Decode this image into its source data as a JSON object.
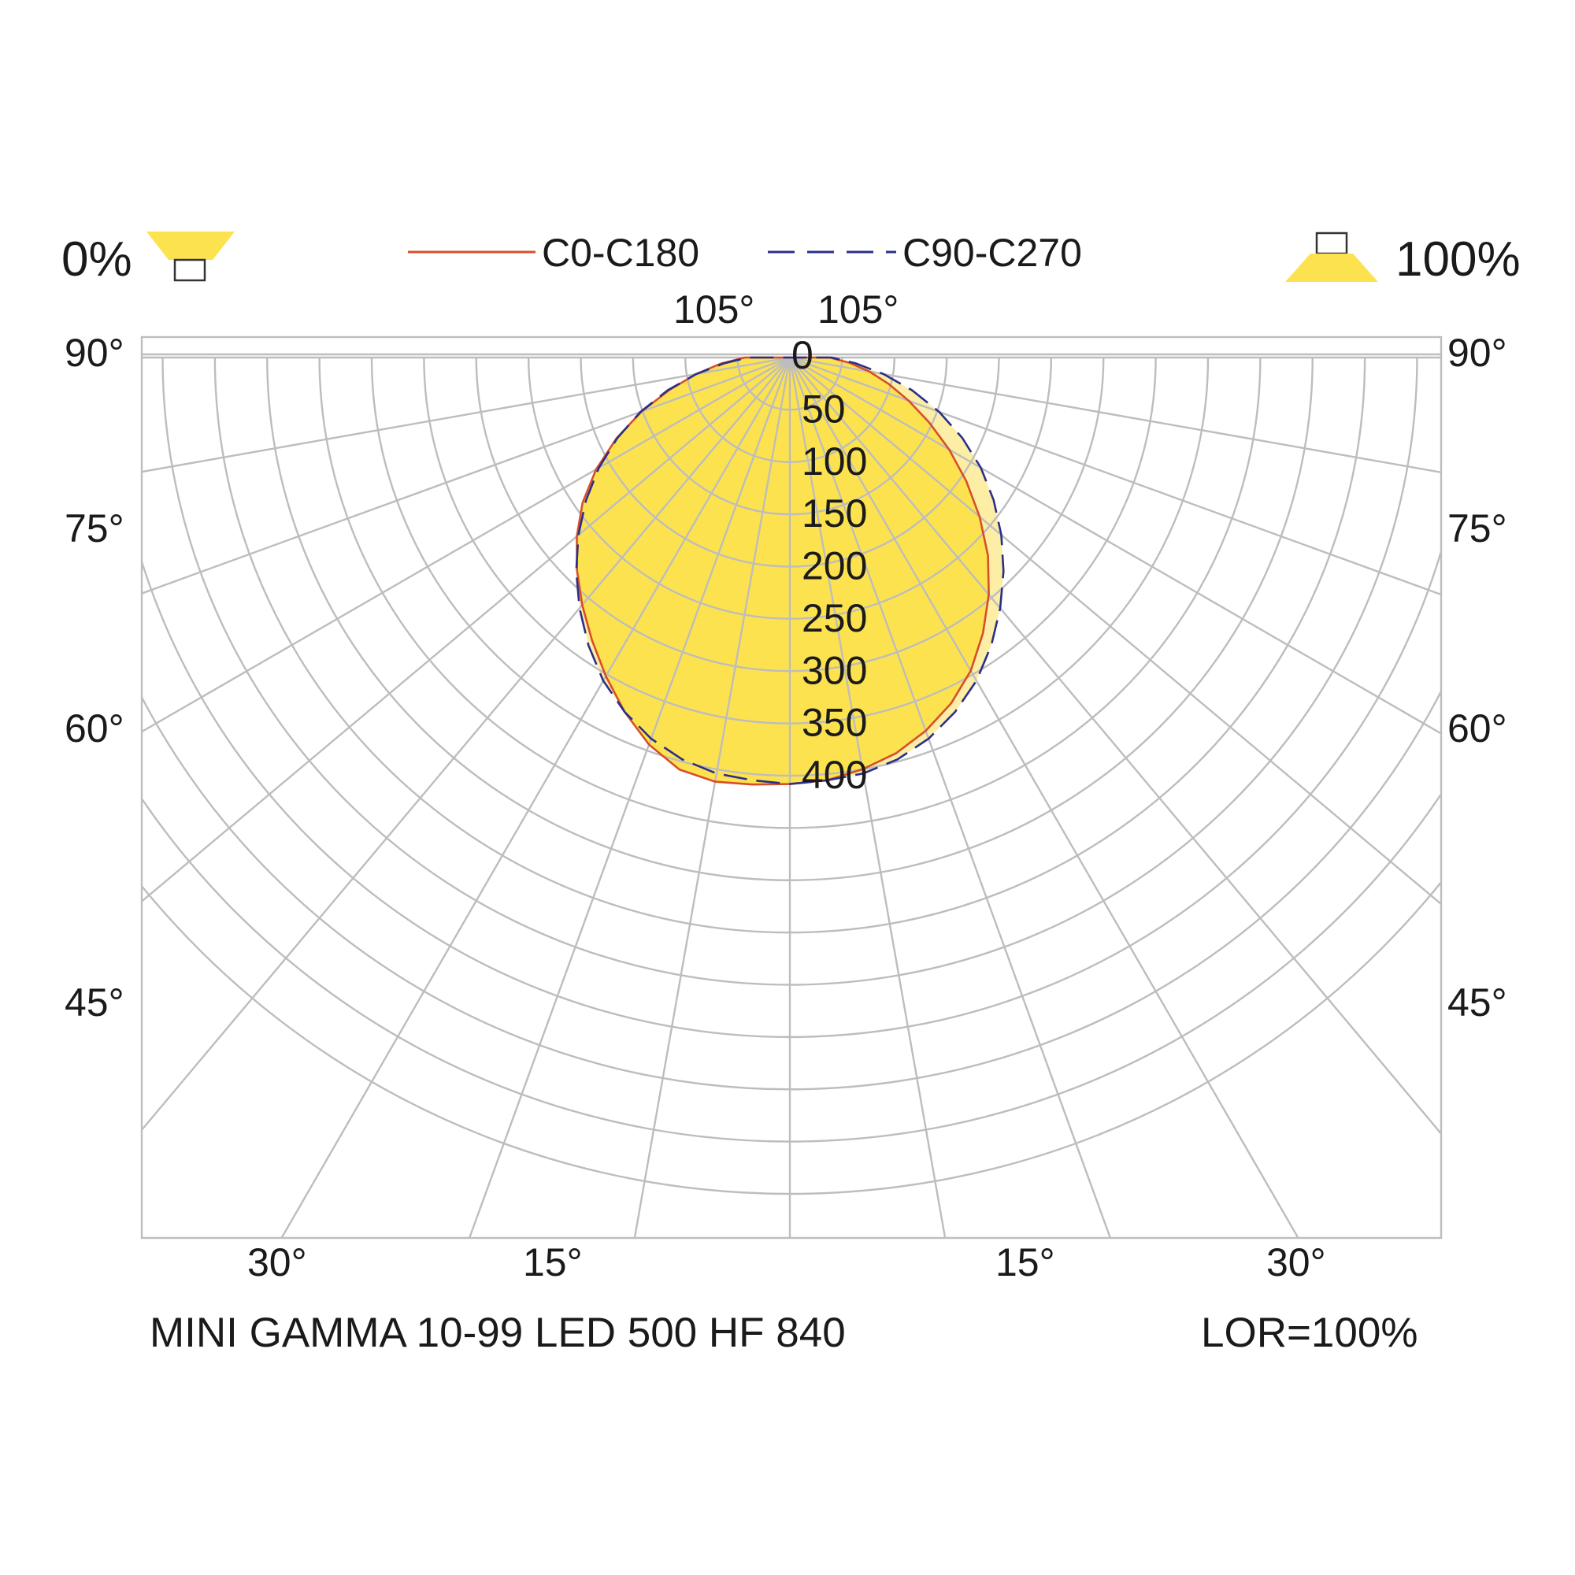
{
  "chart_data": {
    "type": "polar",
    "subtype": "luminous intensity distribution (LDC)",
    "title": "MINI GAMMA 10-99 LED 500 HF 840",
    "footer_right": "LOR=100%",
    "downward_label": "0%",
    "upward_label": "100%",
    "radial_ticks": [
      "0",
      "50",
      "100",
      "150",
      "200",
      "250",
      "300",
      "350",
      "400"
    ],
    "radial_max": 400,
    "angle_labels_top": [
      "105°",
      "105°"
    ],
    "angle_labels_side": [
      "90°",
      "75°",
      "60°",
      "45°"
    ],
    "angle_labels_bottom": [
      "30°",
      "15°",
      "15°",
      "30°"
    ],
    "angles_deg": [
      0,
      5,
      10,
      15,
      20,
      25,
      30,
      35,
      40,
      45,
      50,
      55,
      60,
      65,
      70,
      75,
      80,
      85,
      90
    ],
    "series": [
      {
        "name": "C0-C180",
        "color": "#d64f2a",
        "line": "solid",
        "right_half": [
          408,
          406,
          400,
          392,
          380,
          365,
          346,
          322,
          296,
          268,
          237,
          206,
          176,
          147,
          121,
          98,
          77,
          57,
          38
        ],
        "left_half": [
          408,
          410,
          412,
          408,
          394,
          374,
          352,
          330,
          309,
          288,
          266,
          242,
          214,
          183,
          151,
          119,
          91,
          66,
          43
        ]
      },
      {
        "name": "C90-C270",
        "color": "#2b2f8a",
        "line": "dashed",
        "right_half": [
          408,
          406,
          404,
          398,
          388,
          374,
          357,
          336,
          313,
          289,
          264,
          238,
          211,
          182,
          152,
          121,
          91,
          63,
          40
        ],
        "left_half": [
          408,
          406,
          404,
          398,
          388,
          374,
          357,
          336,
          313,
          289,
          264,
          238,
          211,
          182,
          152,
          121,
          91,
          63,
          40
        ]
      }
    ],
    "fill_color": "#fde24f",
    "fill_light_color": "#fdeea6",
    "grid_color": "#bdbdbd",
    "grid": true,
    "legend_position": "top"
  }
}
